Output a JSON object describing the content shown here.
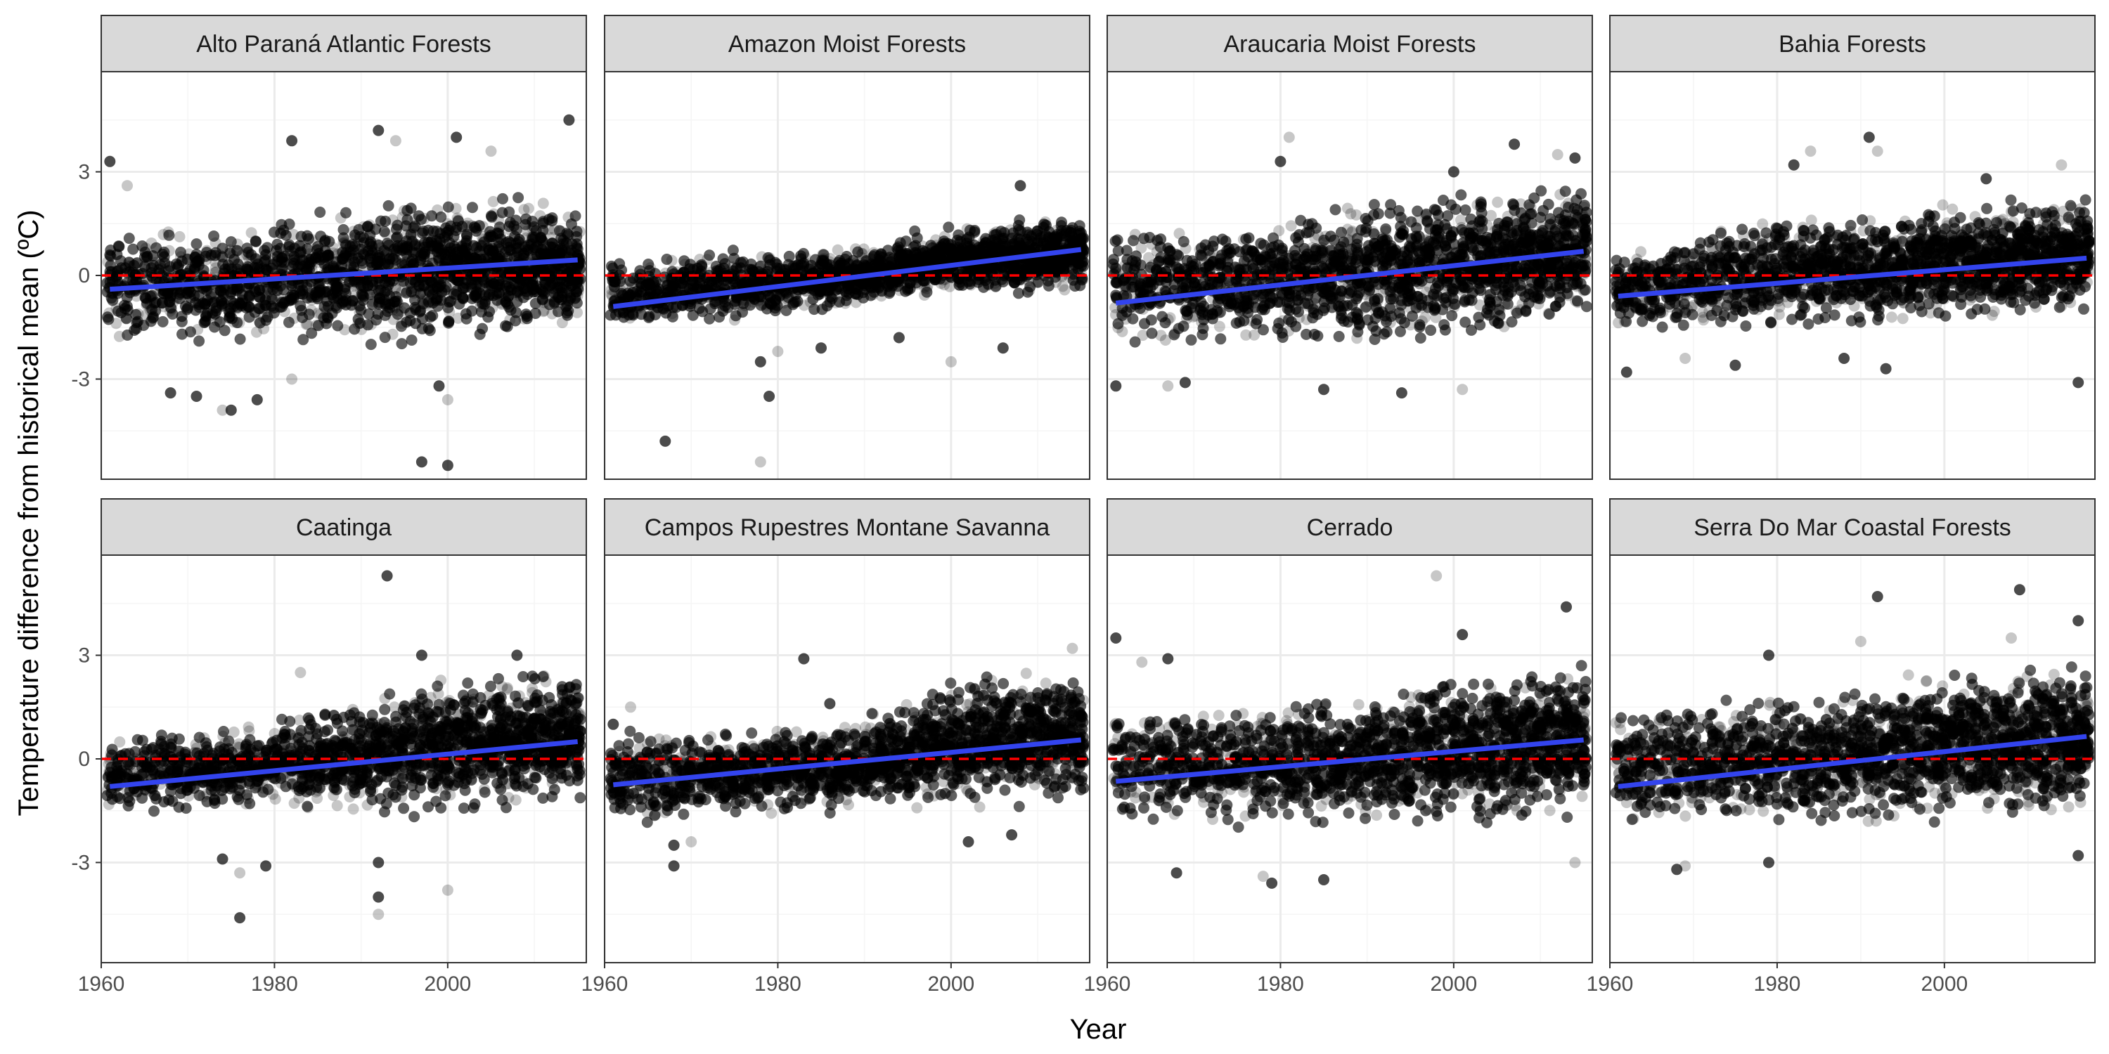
{
  "chart_data": {
    "type": "scatter",
    "layout": "faceted 2 rows x 4 columns",
    "xlabel": "Year",
    "ylabel": "Temperature difference from historical mean (ºC)",
    "xticks": [
      1960,
      1980,
      2000
    ],
    "yticks": [
      -3,
      0,
      3
    ],
    "grid": true,
    "legend": "none",
    "reference_line": {
      "y": 0,
      "style": "dashed",
      "color": "#ff0000"
    },
    "colors": {
      "points": "#000000",
      "trend": "#3344ee",
      "strip": "#d9d9d9",
      "grid_major": "#ebebeb",
      "grid_minor": "#f5f5f5",
      "border": "#333333"
    },
    "panels": [
      {
        "title": "Alto Paraná Atlantic Forests",
        "xlim": [
          1960,
          2016
        ],
        "ylim": [
          -5.9,
          5.9
        ],
        "trend": {
          "x": [
            1961,
            2015
          ],
          "y": [
            -0.4,
            0.45
          ]
        },
        "band": {
          "x": [
            1961,
            1975,
            1990,
            2000,
            2015
          ],
          "lo": [
            -2.0,
            -2.1,
            -2.3,
            -2.2,
            -1.8
          ],
          "hi": [
            1.5,
            1.6,
            2.4,
            2.6,
            2.2
          ]
        },
        "outliers": [
          [
            1961,
            3.3
          ],
          [
            1963,
            2.6
          ],
          [
            1968,
            -3.4
          ],
          [
            1971,
            -3.5
          ],
          [
            1974,
            -3.9
          ],
          [
            1975,
            -3.9
          ],
          [
            1978,
            -3.6
          ],
          [
            1982,
            -3.0
          ],
          [
            1982,
            3.9
          ],
          [
            1992,
            4.2
          ],
          [
            1994,
            3.9
          ],
          [
            1997,
            -5.4
          ],
          [
            1999,
            -3.2
          ],
          [
            2000,
            -3.6
          ],
          [
            2000,
            -5.5
          ],
          [
            2001,
            4.0
          ],
          [
            2005,
            3.6
          ],
          [
            2014,
            4.5
          ]
        ]
      },
      {
        "title": "Amazon Moist Forests",
        "xlim": [
          1960,
          2016
        ],
        "ylim": [
          -5.9,
          5.9
        ],
        "trend": {
          "x": [
            1961,
            2015
          ],
          "y": [
            -0.9,
            0.75
          ]
        },
        "band": {
          "x": [
            1961,
            1975,
            1990,
            2000,
            2015
          ],
          "lo": [
            -1.6,
            -1.4,
            -1.0,
            -0.7,
            -0.6
          ],
          "hi": [
            0.5,
            0.8,
            1.0,
            1.6,
            1.9
          ]
        },
        "outliers": [
          [
            1967,
            -4.8
          ],
          [
            1978,
            -5.4
          ],
          [
            1979,
            -3.5
          ],
          [
            1978,
            -2.5
          ],
          [
            1980,
            -2.2
          ],
          [
            1985,
            -2.1
          ],
          [
            1994,
            -1.8
          ],
          [
            2000,
            -2.5
          ],
          [
            2006,
            -2.1
          ],
          [
            2008,
            2.6
          ]
        ]
      },
      {
        "title": "Araucaria Moist Forests",
        "xlim": [
          1960,
          2016
        ],
        "ylim": [
          -5.9,
          5.9
        ],
        "trend": {
          "x": [
            1961,
            2015
          ],
          "y": [
            -0.8,
            0.7
          ]
        },
        "band": {
          "x": [
            1961,
            1975,
            1990,
            2000,
            2015
          ],
          "lo": [
            -2.3,
            -2.3,
            -2.3,
            -2.1,
            -1.5
          ],
          "hi": [
            1.8,
            1.8,
            2.4,
            2.8,
            2.9
          ]
        },
        "outliers": [
          [
            1961,
            -3.2
          ],
          [
            1967,
            -3.2
          ],
          [
            1969,
            -3.1
          ],
          [
            1980,
            3.3
          ],
          [
            1981,
            4.0
          ],
          [
            1985,
            -3.3
          ],
          [
            1994,
            -3.4
          ],
          [
            2001,
            -3.3
          ],
          [
            2000,
            3.0
          ],
          [
            2007,
            3.8
          ],
          [
            2012,
            3.5
          ],
          [
            2014,
            3.4
          ]
        ]
      },
      {
        "title": "Bahia Forests",
        "xlim": [
          1960,
          2018
        ],
        "ylim": [
          -5.9,
          5.9
        ],
        "trend": {
          "x": [
            1961,
            2017
          ],
          "y": [
            -0.6,
            0.5
          ]
        },
        "band": {
          "x": [
            1961,
            1975,
            1990,
            2000,
            2017
          ],
          "lo": [
            -1.8,
            -1.8,
            -1.7,
            -1.6,
            -1.3
          ],
          "hi": [
            1.0,
            1.8,
            2.0,
            2.3,
            2.5
          ]
        },
        "outliers": [
          [
            1962,
            -2.8
          ],
          [
            1969,
            -2.4
          ],
          [
            1975,
            -2.6
          ],
          [
            1982,
            3.2
          ],
          [
            1984,
            3.6
          ],
          [
            1988,
            -2.4
          ],
          [
            1991,
            4.0
          ],
          [
            1992,
            3.6
          ],
          [
            1993,
            -2.7
          ],
          [
            2005,
            2.8
          ],
          [
            2014,
            3.2
          ],
          [
            2016,
            -3.1
          ]
        ]
      },
      {
        "title": "Caatinga",
        "xlim": [
          1960,
          2016
        ],
        "ylim": [
          -5.9,
          5.9
        ],
        "trend": {
          "x": [
            1961,
            2015
          ],
          "y": [
            -0.8,
            0.5
          ]
        },
        "band": {
          "x": [
            1961,
            1975,
            1990,
            2000,
            2015
          ],
          "lo": [
            -1.8,
            -1.6,
            -1.8,
            -1.9,
            -1.5
          ],
          "hi": [
            1.0,
            1.0,
            2.0,
            2.8,
            2.7
          ]
        },
        "outliers": [
          [
            1974,
            -2.9
          ],
          [
            1976,
            -3.3
          ],
          [
            1976,
            -4.6
          ],
          [
            1979,
            -3.1
          ],
          [
            1983,
            2.5
          ],
          [
            1992,
            -3.0
          ],
          [
            1992,
            -4.0
          ],
          [
            1992,
            -4.5
          ],
          [
            1993,
            5.3
          ],
          [
            1997,
            3.0
          ],
          [
            2000,
            -3.8
          ],
          [
            2008,
            3.0
          ]
        ]
      },
      {
        "title": "Campos Rupestres Montane Savanna",
        "xlim": [
          1960,
          2016
        ],
        "ylim": [
          -5.9,
          5.9
        ],
        "trend": {
          "x": [
            1961,
            2015
          ],
          "y": [
            -0.75,
            0.55
          ]
        },
        "band": {
          "x": [
            1961,
            1975,
            1990,
            2000,
            2015
          ],
          "lo": [
            -1.9,
            -1.9,
            -1.6,
            -1.6,
            -1.4
          ],
          "hi": [
            0.9,
            1.0,
            1.3,
            2.6,
            2.8
          ]
        },
        "outliers": [
          [
            1961,
            1.0
          ],
          [
            1963,
            1.5
          ],
          [
            1968,
            -2.5
          ],
          [
            1968,
            -3.1
          ],
          [
            1970,
            -2.4
          ],
          [
            1983,
            2.9
          ],
          [
            1986,
            1.6
          ],
          [
            1991,
            1.3
          ],
          [
            2002,
            -2.4
          ],
          [
            2007,
            -2.2
          ],
          [
            2014,
            3.2
          ]
        ]
      },
      {
        "title": "Cerrado",
        "xlim": [
          1960,
          2016
        ],
        "ylim": [
          -5.9,
          5.9
        ],
        "trend": {
          "x": [
            1961,
            2015
          ],
          "y": [
            -0.65,
            0.55
          ]
        },
        "band": {
          "x": [
            1961,
            1975,
            1990,
            2000,
            2015
          ],
          "lo": [
            -2.0,
            -2.1,
            -2.2,
            -2.1,
            -1.8
          ],
          "hi": [
            1.6,
            1.8,
            2.2,
            2.6,
            3.0
          ]
        },
        "outliers": [
          [
            1961,
            3.5
          ],
          [
            1964,
            2.8
          ],
          [
            1967,
            2.9
          ],
          [
            1968,
            -3.3
          ],
          [
            1978,
            -3.4
          ],
          [
            1979,
            -3.6
          ],
          [
            1985,
            -3.5
          ],
          [
            1998,
            5.3
          ],
          [
            2001,
            3.6
          ],
          [
            2013,
            4.4
          ],
          [
            2014,
            -3.0
          ]
        ]
      },
      {
        "title": "Serra Do Mar Coastal Forests",
        "xlim": [
          1960,
          2018
        ],
        "ylim": [
          -5.9,
          5.9
        ],
        "trend": {
          "x": [
            1961,
            2017
          ],
          "y": [
            -0.8,
            0.65
          ]
        },
        "band": {
          "x": [
            1961,
            1975,
            1990,
            2000,
            2017
          ],
          "lo": [
            -2.0,
            -2.1,
            -2.2,
            -2.1,
            -1.8
          ],
          "hi": [
            1.6,
            2.0,
            2.4,
            2.8,
            3.0
          ]
        },
        "outliers": [
          [
            1968,
            -3.2
          ],
          [
            1969,
            -3.1
          ],
          [
            1979,
            -3.0
          ],
          [
            1979,
            3.0
          ],
          [
            1990,
            3.4
          ],
          [
            1992,
            4.7
          ],
          [
            2009,
            4.9
          ],
          [
            2008,
            3.5
          ],
          [
            2016,
            4.0
          ],
          [
            2016,
            -2.8
          ]
        ]
      }
    ]
  }
}
